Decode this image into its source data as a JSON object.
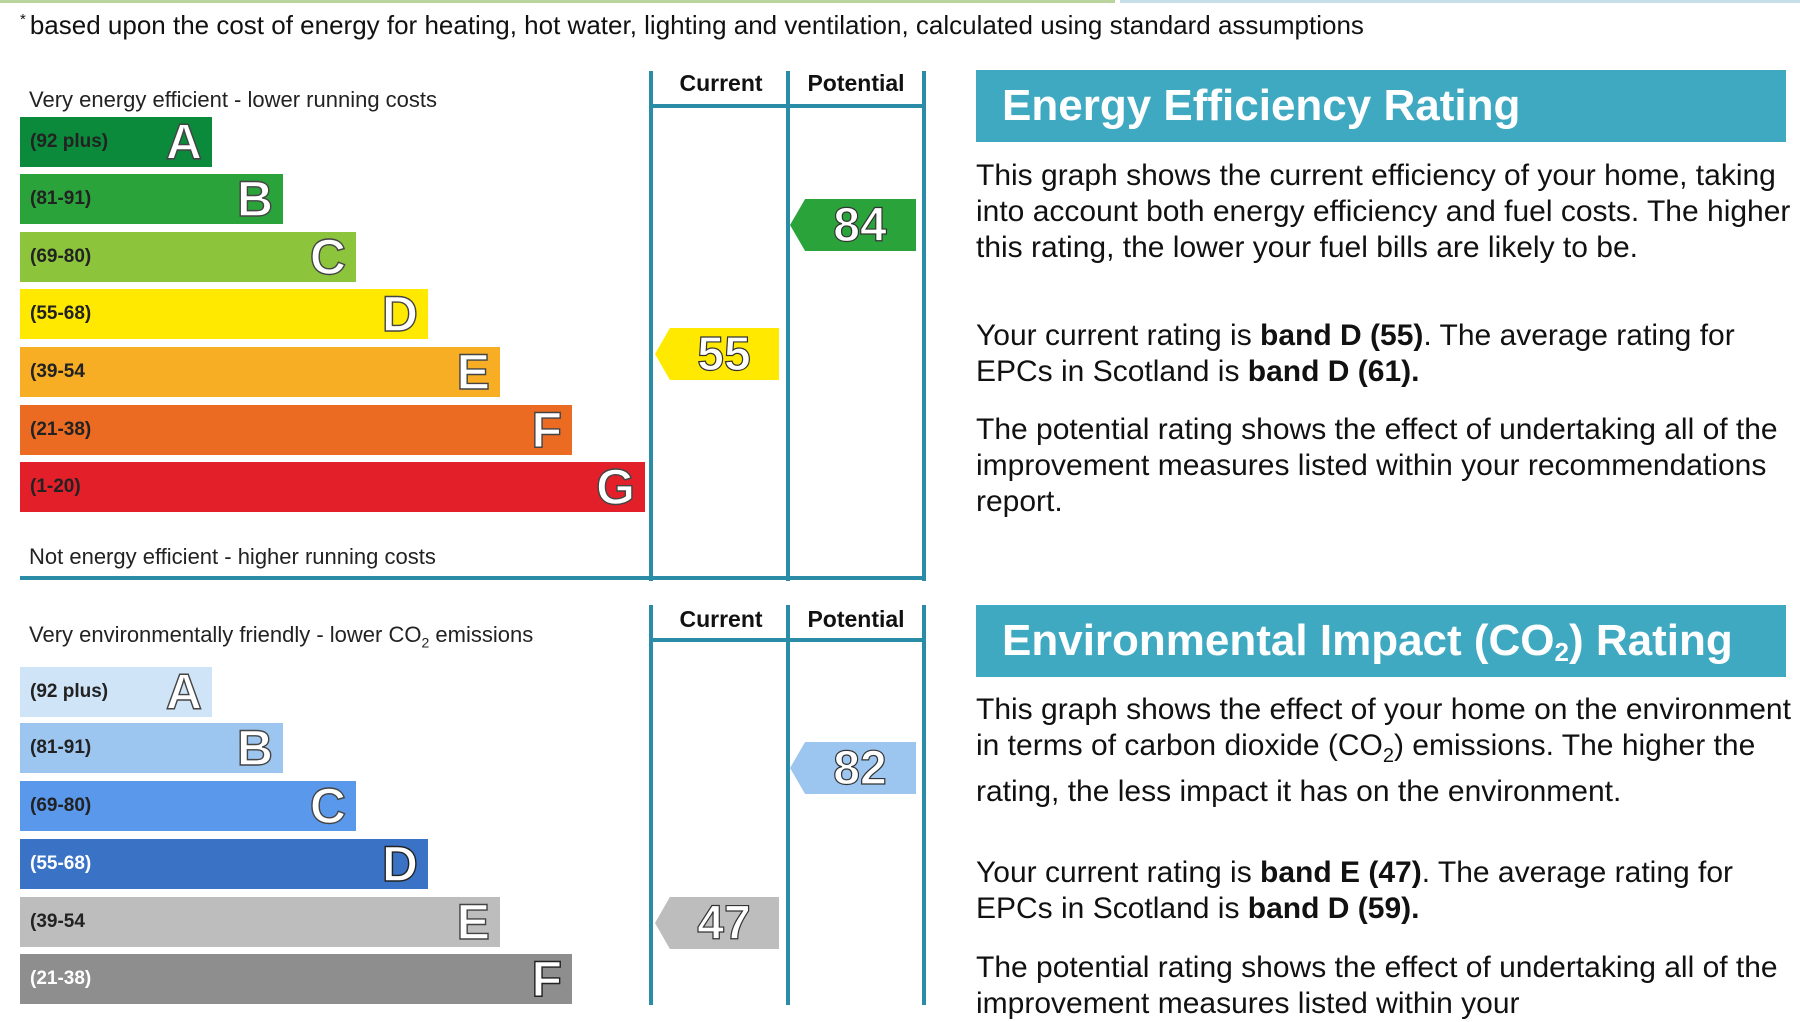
{
  "footnote": {
    "marker": "*",
    "text": "based upon the cost of energy for heating, hot water, lighting and ventilation, calculated using standard assumptions"
  },
  "columns": {
    "current": "Current",
    "potential": "Potential"
  },
  "energy_efficiency": {
    "top_caption": "Very energy efficient - lower running costs",
    "bottom_caption": "Not energy efficient - higher running costs",
    "bands": [
      {
        "range": "(92 plus)",
        "letter": "A",
        "color": "#0a8a3a"
      },
      {
        "range": "(81-91)",
        "letter": "B",
        "color": "#2aa33a"
      },
      {
        "range": "(69-80)",
        "letter": "C",
        "color": "#8cc43c"
      },
      {
        "range": "(55-68)",
        "letter": "D",
        "color": "#ffe900"
      },
      {
        "range": "(39-54",
        "letter": "E",
        "color": "#f7ad24"
      },
      {
        "range": "(21-38)",
        "letter": "F",
        "color": "#ec6b23"
      },
      {
        "range": "(1-20)",
        "letter": "G",
        "color": "#e3202a"
      }
    ],
    "current": {
      "value": "55",
      "color": "#ffe900"
    },
    "potential": {
      "value": "84",
      "color": "#2aa33a"
    },
    "heading": "Energy Efficiency Rating",
    "para1": "This graph shows the current efficiency of your home, taking into account both energy efficiency and fuel costs. The higher this rating, the lower your fuel bills are likely to be.",
    "para2_a": "Your current rating is ",
    "para2_b": "band D (55)",
    "para2_c": ". The average rating for EPCs in Scotland is ",
    "para2_d": "band D (61).",
    "para3": "The potential rating shows the effect of undertaking all of the improvement measures listed within your recommendations report."
  },
  "environmental_impact": {
    "top_caption_a": "Very environmentally friendly - lower CO",
    "top_caption_sub": "2",
    "top_caption_b": " emissions",
    "bands": [
      {
        "range": "(92 plus)",
        "letter": "A",
        "color": "#cfe4f7"
      },
      {
        "range": "(81-91)",
        "letter": "B",
        "color": "#9cc6ef"
      },
      {
        "range": "(69-80)",
        "letter": "C",
        "color": "#5a98ec"
      },
      {
        "range": "(55-68)",
        "letter": "D",
        "color": "#3a73c6"
      },
      {
        "range": "(39-54",
        "letter": "E",
        "color": "#bdbdbd"
      },
      {
        "range": "(21-38)",
        "letter": "F",
        "color": "#8e8e8e"
      }
    ],
    "current": {
      "value": "47",
      "color": "#bdbdbd"
    },
    "potential": {
      "value": "82",
      "color": "#9cc6ef"
    },
    "heading_a": "Environmental Impact (CO",
    "heading_sub": "2",
    "heading_b": ") Rating",
    "para1_a": "This graph shows the effect of your home on the environment in terms of carbon dioxide (CO",
    "para1_sub": "2",
    "para1_b": ") emissions. The higher the rating, the less impact it has on the environment.",
    "para2_a": "Your current rating is ",
    "para2_b": "band E (47)",
    "para2_c": ". The average rating for EPCs in Scotland is ",
    "para2_d": "band D (59).",
    "para3": "The potential rating shows the effect of undertaking all of the improvement measures listed within your"
  }
}
